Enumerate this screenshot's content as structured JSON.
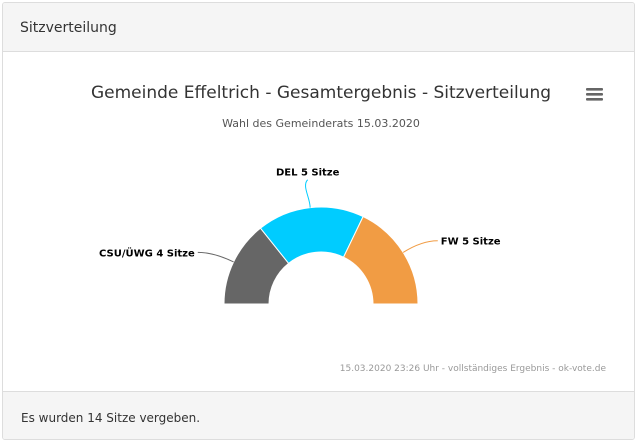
{
  "panel": {
    "heading": "Sitzverteilung",
    "footer": "Es wurden 14 Sitze vergeben."
  },
  "menu": {
    "icon": "hamburger-menu-icon"
  },
  "chart_data": {
    "type": "pie",
    "variant": "semicircle-donut",
    "title": "Gemeinde Effeltrich - Gesamtergebnis - Sitzverteilung",
    "subtitle": "Wahl des Gemeinderats 15.03.2020",
    "credits": "15.03.2020 23:26 Uhr - vollständiges Ergebnis - ok-vote.de",
    "total_seats": 14,
    "slices": [
      {
        "name": "CSU/ÜWG",
        "value": 4,
        "label": "CSU/ÜWG 4 Sitze",
        "color": "#666666"
      },
      {
        "name": "DEL",
        "value": 5,
        "label": "DEL 5 Sitze",
        "color": "#00ccff"
      },
      {
        "name": "FW",
        "value": 5,
        "label": "FW 5 Sitze",
        "color": "#f19c44"
      }
    ]
  }
}
